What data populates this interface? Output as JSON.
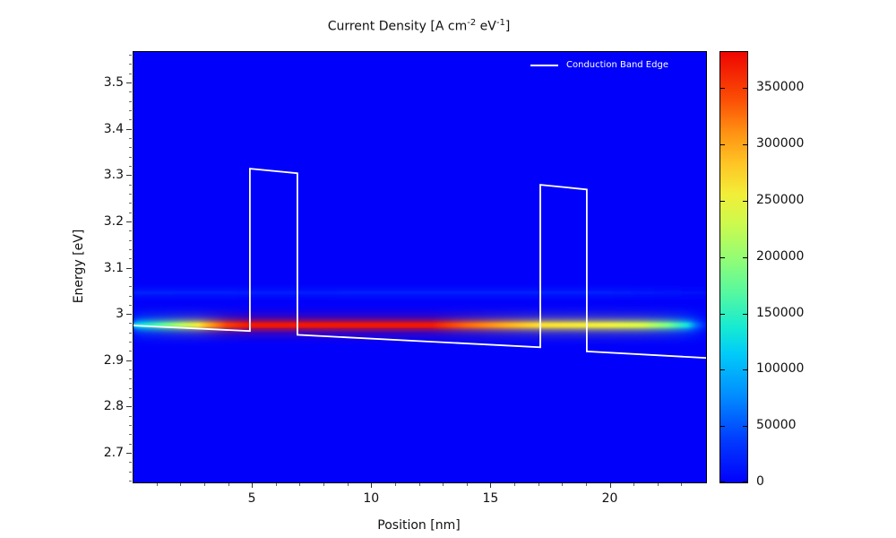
{
  "labels": {
    "title_prefix": "Current Density [A cm",
    "title_sup1": "-2",
    "title_mid": " eV",
    "title_sup2": "-1",
    "title_suffix": "]"
  },
  "chart_data": {
    "type": "heatmap",
    "title": "Current Density [A cm^-2 eV^-1]",
    "xlabel": "Position [nm]",
    "ylabel": "Energy [eV]",
    "xlim": [
      0,
      24
    ],
    "ylim": [
      2.638,
      3.568
    ],
    "x_tick_values": [
      5,
      10,
      15,
      20
    ],
    "x_tick_labels": [
      "5",
      "10",
      "15",
      "20"
    ],
    "y_tick_values": [
      2.7,
      2.8,
      2.9,
      3.0,
      3.1,
      3.2,
      3.3,
      3.4,
      3.5
    ],
    "y_tick_labels": [
      "2.7",
      "2.8",
      "2.9",
      "3",
      "3.1",
      "3.2",
      "3.3",
      "3.4",
      "3.5"
    ],
    "grid": false,
    "background_value_color": "#0101fb",
    "legend": {
      "label": "Conduction Band Edge",
      "color": "#ffffff",
      "position": "top-right"
    },
    "band_edge_points": [
      [
        0,
        2.977
      ],
      [
        4.88,
        2.965
      ],
      [
        4.88,
        3.316
      ],
      [
        6.87,
        3.306
      ],
      [
        6.87,
        2.957
      ],
      [
        17.05,
        2.93
      ],
      [
        17.05,
        3.281
      ],
      [
        19.0,
        3.271
      ],
      [
        19.0,
        2.921
      ],
      [
        24,
        2.907
      ]
    ],
    "resonance_streaks": [
      {
        "energy": 2.978,
        "peak_value": 372000,
        "profile": [
          [
            0,
            115000
          ],
          [
            0.5,
            135000
          ],
          [
            1.2,
            170000
          ],
          [
            2.0,
            215000
          ],
          [
            2.7,
            260000
          ],
          [
            3.3,
            310000
          ],
          [
            3.9,
            350000
          ],
          [
            4.8,
            372000
          ],
          [
            12.5,
            372000
          ],
          [
            14,
            330000
          ],
          [
            15.5,
            300000
          ],
          [
            17,
            268000
          ],
          [
            20,
            252000
          ],
          [
            21.3,
            235000
          ],
          [
            22.4,
            185000
          ],
          [
            23.2,
            128000
          ],
          [
            23.6,
            60000
          ],
          [
            24,
            15000
          ]
        ]
      },
      {
        "energy": 3.048,
        "peak_value": 30000,
        "profile": [
          [
            0,
            30000
          ],
          [
            6,
            24000
          ],
          [
            12,
            28000
          ],
          [
            20,
            26000
          ],
          [
            24,
            12000
          ]
        ]
      }
    ],
    "colorbar": {
      "min": 0,
      "max": 382000,
      "tick_values": [
        0,
        50000,
        100000,
        150000,
        200000,
        250000,
        300000,
        350000
      ],
      "tick_labels": [
        "0",
        "50000",
        "100000",
        "150000",
        "200000",
        "250000",
        "300000",
        "350000"
      ],
      "colormap_stops": [
        [
          0.0,
          "#0101fb"
        ],
        [
          0.1,
          "#013cff"
        ],
        [
          0.2,
          "#018cff"
        ],
        [
          0.3,
          "#01ccf8"
        ],
        [
          0.36,
          "#16ead2"
        ],
        [
          0.44,
          "#55f8a0"
        ],
        [
          0.52,
          "#93fd75"
        ],
        [
          0.6,
          "#ccfa4d"
        ],
        [
          0.67,
          "#f2ee38"
        ],
        [
          0.74,
          "#ffc525"
        ],
        [
          0.81,
          "#ff9413"
        ],
        [
          0.89,
          "#fb4e05"
        ],
        [
          1.0,
          "#ef0501"
        ]
      ]
    }
  }
}
